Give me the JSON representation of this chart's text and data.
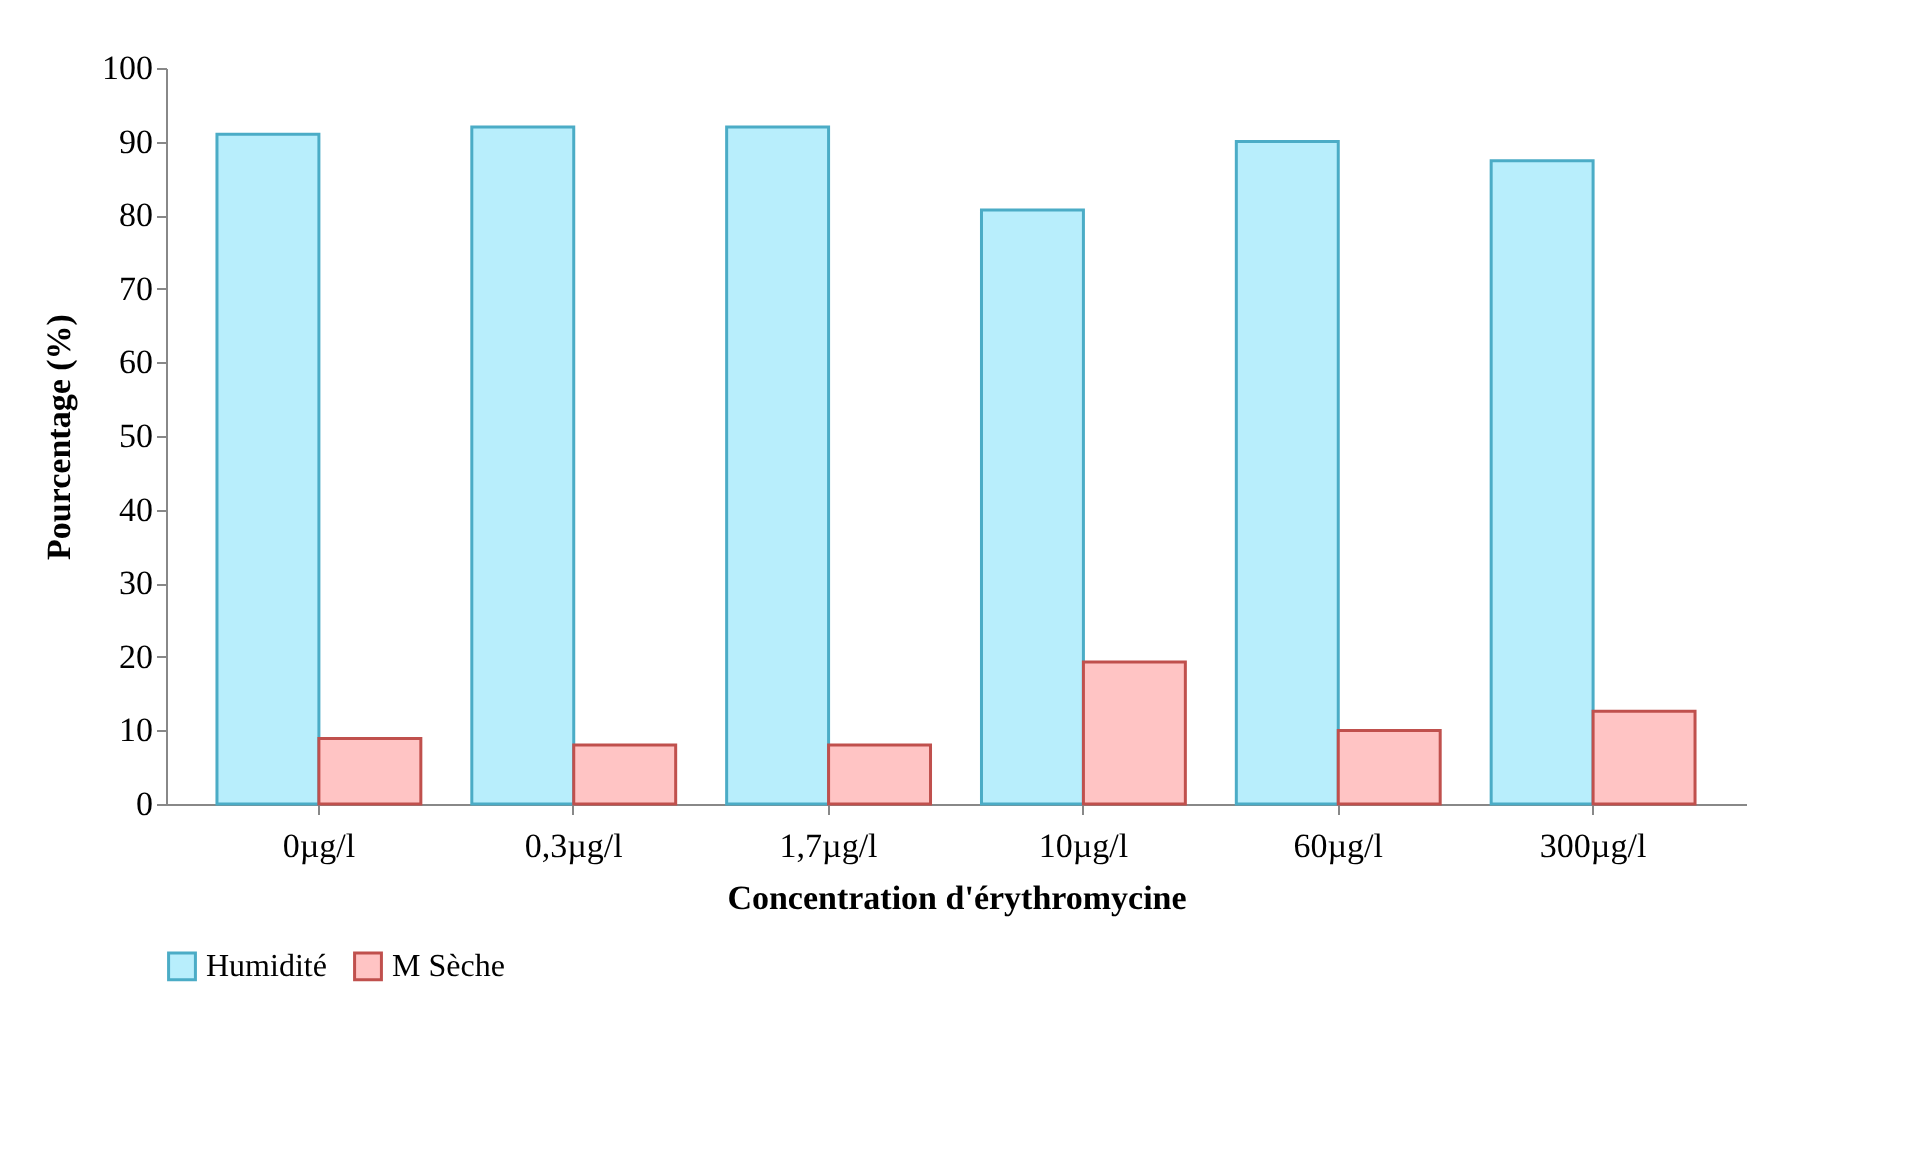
{
  "chart_data": {
    "type": "bar",
    "xlabel": "Concentration d'érythromycine",
    "ylabel": "Pourcentage (%)",
    "categories": [
      "0µg/l",
      "0,3µg/l",
      "1,7µg/l",
      "10µg/l",
      "60µg/l",
      "300µg/l"
    ],
    "series": [
      {
        "name": "Humidité",
        "color": "#b8eefc",
        "values": [
          91.0,
          92.0,
          92.0,
          80.7,
          90.0,
          87.4
        ]
      },
      {
        "name": "M Sèche",
        "color": "#ffc4c4",
        "values": [
          8.9,
          8.0,
          8.0,
          19.3,
          10.0,
          12.6
        ]
      }
    ],
    "ylim": [
      0,
      100
    ],
    "yticks": [
      0,
      10,
      20,
      30,
      40,
      50,
      60,
      70,
      80,
      90,
      100
    ],
    "grid": false,
    "legend": "bottom"
  }
}
